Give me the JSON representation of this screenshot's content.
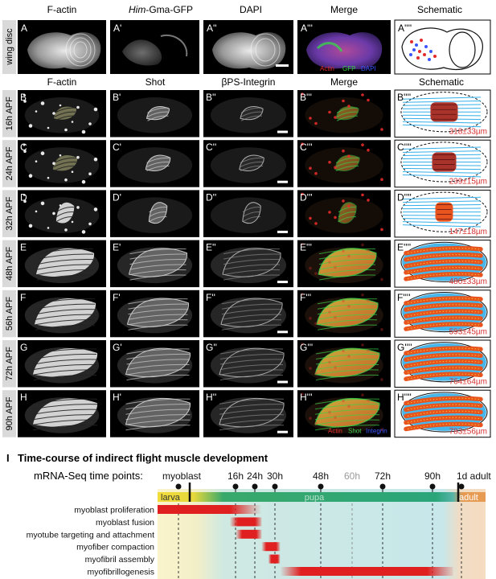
{
  "top_headers": [
    "F-actin",
    "Him-Gma-GFP",
    "DAPI",
    "Merge",
    "Schematic"
  ],
  "top_header_prefix_italic": "Him",
  "top_header_suffix": "-Gma-GFP",
  "wing_disc_label": "wing disc",
  "row_a_labels": [
    "A",
    "A'",
    "A''",
    "A'''",
    "A''''"
  ],
  "row_a_merge_legend": {
    "actin": "Actin",
    "gfp": "GFP",
    "dapi": "DAPI"
  },
  "mid_headers": [
    "F-actin",
    "Shot",
    "βPS-Integrin",
    "Merge",
    "Schematic"
  ],
  "rows": [
    {
      "time": "16h APF",
      "letter": "B",
      "labels": [
        "B",
        "B'",
        "B''",
        "B'''",
        "B''''"
      ],
      "length": "318±33µm"
    },
    {
      "time": "24h APF",
      "letter": "C",
      "labels": [
        "C",
        "C'",
        "C''",
        "C'''",
        "C''''"
      ],
      "length": "239±15µm"
    },
    {
      "time": "32h APF",
      "letter": "D",
      "labels": [
        "D",
        "D'",
        "D''",
        "D'''",
        "D''''"
      ],
      "length": "147±18µm"
    },
    {
      "time": "48h APF",
      "letter": "E",
      "labels": [
        "E",
        "E'",
        "E''",
        "E'''",
        "E''''"
      ],
      "length": "480±33µm"
    },
    {
      "time": "56h APF",
      "letter": "F",
      "labels": [
        "F",
        "F'",
        "F''",
        "F'''",
        "F''''"
      ],
      "length": "593±45µm"
    },
    {
      "time": "72h APF",
      "letter": "G",
      "labels": [
        "G",
        "G'",
        "G''",
        "G'''",
        "G''''"
      ],
      "length": "764±64µm"
    },
    {
      "time": "90h APF",
      "letter": "H",
      "labels": [
        "H",
        "H'",
        "H''",
        "H'''",
        "H''''"
      ],
      "length": "783±56µm"
    }
  ],
  "row_h_merge_legend": {
    "actin": "Actin",
    "shot": "Shot",
    "integrin": "Integrin"
  },
  "timeline": {
    "panel_letter": "I",
    "title": "Time-course of indirect flight muscle development",
    "mrna_label": "mRNA-Seq time points:",
    "timepoints": [
      {
        "label": "myoblast",
        "hours": 0,
        "style": "normal"
      },
      {
        "label": "16h",
        "hours": 16,
        "style": "normal"
      },
      {
        "label": "24h",
        "hours": 24,
        "style": "normal"
      },
      {
        "label": "30h",
        "hours": 30,
        "style": "normal"
      },
      {
        "label": "48h",
        "hours": 48,
        "style": "normal"
      },
      {
        "label": "60h",
        "hours": 60,
        "style": "grey"
      },
      {
        "label": "72h",
        "hours": 72,
        "style": "normal"
      },
      {
        "label": "90h",
        "hours": 90,
        "style": "normal"
      },
      {
        "label": "1d adult",
        "hours": 105,
        "style": "normal"
      }
    ],
    "stages": {
      "larva": "larva",
      "pupa": "pupa",
      "adult": "adult"
    },
    "processes": [
      {
        "name": "myoblast proliferation",
        "start_h": -12,
        "end_h": 26
      },
      {
        "name": "myoblast fusion",
        "start_h": 14,
        "end_h": 26
      },
      {
        "name": "myotube targeting and attachment",
        "start_h": 16,
        "end_h": 26
      },
      {
        "name": "myofiber compaction",
        "start_h": 26,
        "end_h": 32
      },
      {
        "name": "myofibril assembly",
        "start_h": 28,
        "end_h": 32
      },
      {
        "name": "myofibrillogenesis",
        "start_h": 32,
        "end_h": 102
      }
    ]
  },
  "colors": {
    "actin": "#e32b2b",
    "gfp": "#3ad14a",
    "dapi": "#3a55ff",
    "myoblast_bar": "#e02020",
    "muscle_fill": "#e8541e",
    "tendon": "#33aee8",
    "length_text": "#d73030",
    "larva": "#f2dc3c",
    "pupa": "#2aa57a",
    "adult": "#e79a52"
  }
}
